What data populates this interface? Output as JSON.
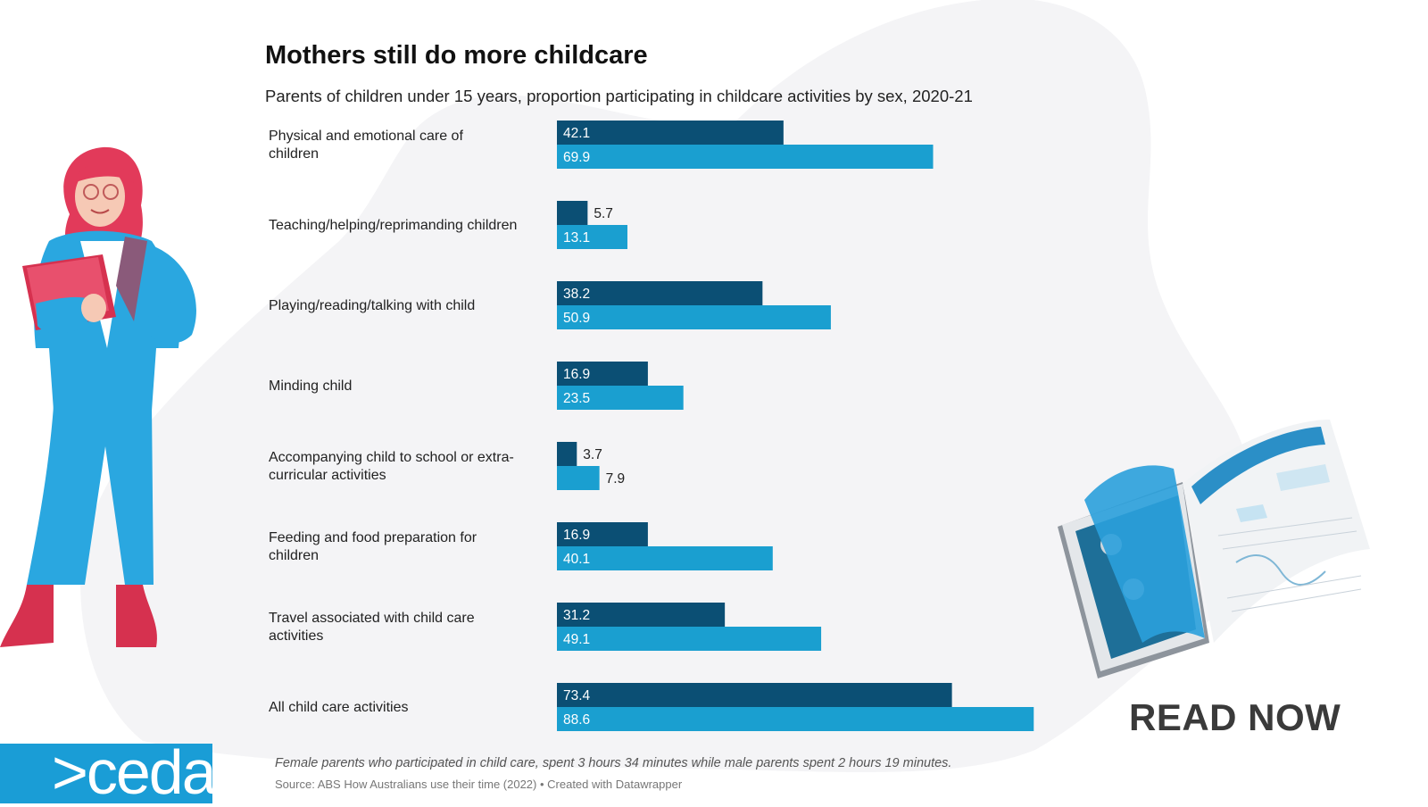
{
  "chart_data": {
    "type": "bar",
    "orientation": "horizontal",
    "title": "Mothers still do more childcare",
    "subtitle": "Parents of children under 15 years, proportion participating in childcare activities by sex, 2020-21",
    "categories": [
      "Physical and emotional care of children",
      "Teaching/helping/reprimanding children",
      "Playing/reading/talking with child",
      "Minding child",
      "Accompanying child to school or extra-curricular activities",
      "Feeding and food preparation for children",
      "Travel associated with child care activities",
      "All child care activities"
    ],
    "series": [
      {
        "values": [
          42.1,
          5.7,
          38.2,
          16.9,
          3.7,
          16.9,
          31.2,
          73.4
        ],
        "color": "#0b4f74"
      },
      {
        "values": [
          69.9,
          13.1,
          50.9,
          23.5,
          7.9,
          40.1,
          49.1,
          88.6
        ],
        "color": "#1a9fd0"
      }
    ],
    "xlim": [
      0,
      100
    ],
    "grid": false,
    "legend": "none",
    "note": "Female parents who participated in child care, spent 3 hours 34 minutes while male parents spent 2 hours 19 minutes.",
    "source": "Source: ABS How Australians use their time (2022) • Created with Datawrapper"
  },
  "logo": {
    "text": ">ceda",
    "color": "#1a9dd6"
  },
  "cta": {
    "label": "READ NOW"
  },
  "illustrations": {
    "left": "woman-with-tablet-illustration",
    "right": "open-magazine-illustration"
  },
  "colors": {
    "background_blob": "#f4f4f6"
  }
}
